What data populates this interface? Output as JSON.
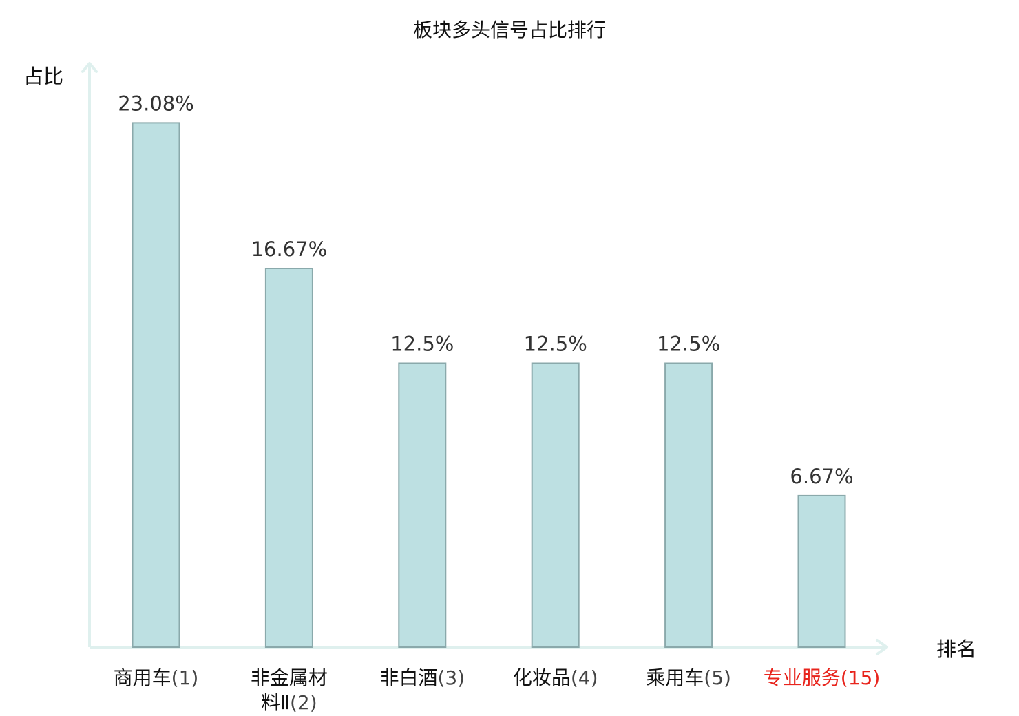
{
  "chart_data": {
    "type": "bar",
    "title": "板块多头信号占比排行",
    "ylabel": "占比",
    "xlabel": "排名",
    "categories": [
      {
        "name": "商用车",
        "rank": "(1)",
        "highlight": false
      },
      {
        "name": "非金属材料Ⅱ",
        "name_lines": [
          "非金属材",
          "料Ⅱ"
        ],
        "rank": "(2)",
        "highlight": false
      },
      {
        "name": "非白酒",
        "rank": "(3)",
        "highlight": false
      },
      {
        "name": "化妆品",
        "rank": "(4)",
        "highlight": false
      },
      {
        "name": "乘用车",
        "rank": "(5)",
        "highlight": false
      },
      {
        "name": "专业服务",
        "rank": "(15)",
        "highlight": true
      }
    ],
    "values": [
      23.08,
      16.67,
      12.5,
      12.5,
      12.5,
      6.67
    ],
    "value_labels": [
      "23.08%",
      "16.67%",
      "12.5%",
      "12.5%",
      "12.5%",
      "6.67%"
    ],
    "ylim": [
      0,
      25.7
    ],
    "grid": false,
    "legend": "none",
    "colors": {
      "bar_fill": "#bde0e2",
      "bar_stroke": "#8aa9ab",
      "axis": "#dff0ee",
      "highlight_text": "#e8241c",
      "text": "#111111",
      "value_text": "#333333"
    }
  }
}
